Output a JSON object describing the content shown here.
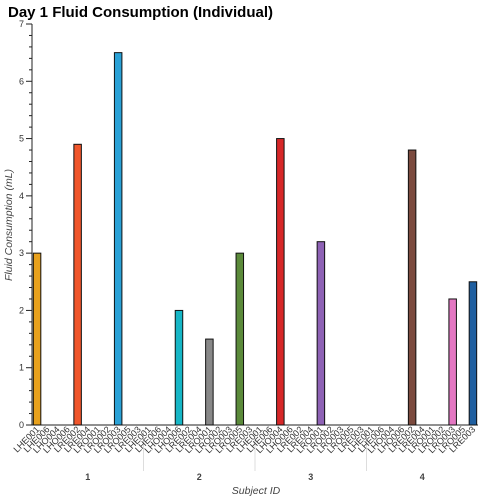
{
  "chart_data": {
    "type": "bar",
    "title": "Day 1 Fluid Consumption (Individual)",
    "xlabel": "Subject ID",
    "ylabel": "Fluid Consumption (mL)",
    "ylim": [
      0,
      7
    ],
    "yticks": [
      0,
      1,
      2,
      3,
      4,
      5,
      6,
      7
    ],
    "grid": false,
    "legend": "none",
    "categories": [
      "LHE001",
      "LHE006",
      "LHO004",
      "LHO006",
      "LRE002",
      "LRE004",
      "LRO001",
      "LRO002",
      "LRO003",
      "LRO005",
      "LRE003"
    ],
    "groups": [
      {
        "name": "1",
        "values": [
          3.0,
          0,
          0,
          0,
          4.9,
          0,
          0,
          0,
          6.5,
          0,
          0
        ],
        "colors": [
          "#e8a11c",
          "#e8a11c",
          "#e8a11c",
          "#e8a11c",
          "#f0562b",
          "#f0562b",
          "#f0562b",
          "#f0562b",
          "#2aa1d6",
          "#2aa1d6",
          "#2aa1d6"
        ]
      },
      {
        "name": "2",
        "values": [
          0,
          0,
          0,
          2.0,
          0,
          0,
          1.5,
          0,
          0,
          3.0,
          0
        ],
        "colors": [
          "#16b6c6",
          "#16b6c6",
          "#16b6c6",
          "#16b6c6",
          "#888888",
          "#888888",
          "#888888",
          "#888888",
          "#5b8a3a",
          "#5b8a3a",
          "#5b8a3a"
        ]
      },
      {
        "name": "3",
        "values": [
          0,
          0,
          5.0,
          0,
          0,
          0,
          3.2,
          0,
          0,
          0,
          0
        ],
        "colors": [
          "#d62728",
          "#d62728",
          "#d62728",
          "#d62728",
          "#8e62b5",
          "#8e62b5",
          "#8e62b5",
          "#8e62b5",
          "#8e62b5",
          "#8e62b5",
          "#8e62b5"
        ]
      },
      {
        "name": "4",
        "values": [
          0,
          0,
          0,
          0,
          4.8,
          0,
          0,
          0,
          2.2,
          0,
          2.5
        ],
        "colors": [
          "#7b4a3e",
          "#7b4a3e",
          "#7b4a3e",
          "#7b4a3e",
          "#7b4a3e",
          "#7b4a3e",
          "#7b4a3e",
          "#7b4a3e",
          "#e377c2",
          "#e377c2",
          "#1f5fa0"
        ]
      }
    ]
  }
}
